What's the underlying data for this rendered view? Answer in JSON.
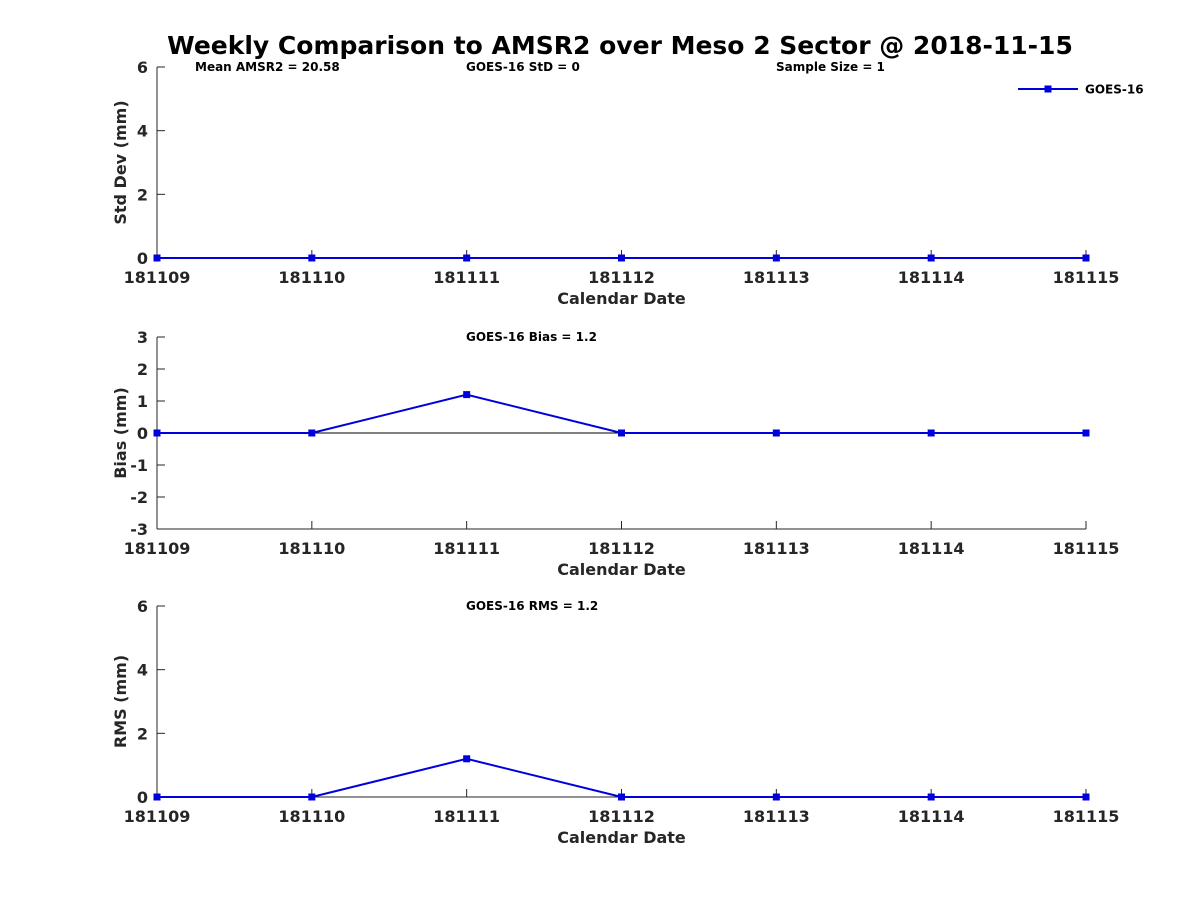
{
  "title": "Weekly Comparison to AMSR2 over Meso 2 Sector @ 2018-11-15",
  "colors": {
    "series": "#0000dd",
    "axis": "#262626",
    "zero_line": "#000000"
  },
  "legend": {
    "label": "GOES-16",
    "placement": "top-right"
  },
  "chart_data": [
    {
      "type": "line",
      "x": [
        "181109",
        "181110",
        "181111",
        "181112",
        "181113",
        "181114",
        "181115"
      ],
      "series": [
        {
          "name": "GOES-16",
          "values": [
            0,
            0,
            0,
            0,
            0,
            0,
            0
          ]
        }
      ],
      "xlabel": "Calendar Date",
      "ylabel": "Std Dev (mm)",
      "ylim": [
        0,
        6
      ],
      "yticks": [
        "0",
        "2",
        "4",
        "6"
      ],
      "annotations": [
        "Mean AMSR2 = 20.58",
        "GOES-16 StD = 0",
        "Sample Size = 1"
      ]
    },
    {
      "type": "line",
      "x": [
        "181109",
        "181110",
        "181111",
        "181112",
        "181113",
        "181114",
        "181115"
      ],
      "series": [
        {
          "name": "GOES-16",
          "values": [
            0,
            0,
            1.2,
            0,
            0,
            0,
            0
          ]
        }
      ],
      "xlabel": "Calendar Date",
      "ylabel": "Bias (mm)",
      "ylim": [
        -3,
        3
      ],
      "yticks": [
        "-3",
        "-2",
        "-1",
        "0",
        "1",
        "2",
        "3"
      ],
      "zero_line": true,
      "annotations": [
        "GOES-16 Bias  = 1.2"
      ]
    },
    {
      "type": "line",
      "x": [
        "181109",
        "181110",
        "181111",
        "181112",
        "181113",
        "181114",
        "181115"
      ],
      "series": [
        {
          "name": "GOES-16",
          "values": [
            0,
            0,
            1.2,
            0,
            0,
            0,
            0
          ]
        }
      ],
      "xlabel": "Calendar Date",
      "ylabel": "RMS (mm)",
      "ylim": [
        0,
        6
      ],
      "yticks": [
        "0",
        "2",
        "4",
        "6"
      ],
      "annotations": [
        "GOES-16 RMS = 1.2"
      ]
    }
  ]
}
